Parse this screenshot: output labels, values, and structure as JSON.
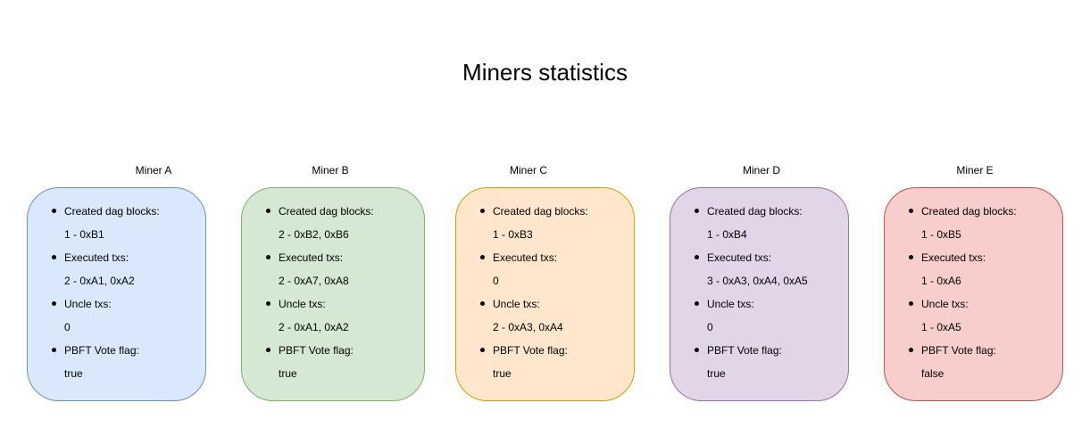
{
  "title": "Miners statistics",
  "miners": [
    {
      "name": "Miner A",
      "fill": "#dae8fc",
      "stroke": "#6c8ebf",
      "stats": [
        {
          "label": "Created dag blocks:",
          "value": "1 - 0xB1"
        },
        {
          "label": "Executed txs:",
          "value": "2 - 0xA1, 0xA2"
        },
        {
          "label": "Uncle txs:",
          "value": "0"
        },
        {
          "label": "PBFT Vote flag:",
          "value": "true"
        }
      ]
    },
    {
      "name": "Miner B",
      "fill": "#d5e8d4",
      "stroke": "#82b366",
      "stats": [
        {
          "label": "Created dag blocks:",
          "value": "2 - 0xB2, 0xB6"
        },
        {
          "label": "Executed txs:",
          "value": "2 - 0xA7, 0xA8"
        },
        {
          "label": "Uncle txs:",
          "value": "2 - 0xA1, 0xA2"
        },
        {
          "label": "PBFT Vote flag:",
          "value": "true"
        }
      ]
    },
    {
      "name": "Miner C",
      "fill": "#ffe6cc",
      "stroke": "#d79b00",
      "stats": [
        {
          "label": "Created dag blocks:",
          "value": "1 - 0xB3"
        },
        {
          "label": "Executed txs:",
          "value": "0"
        },
        {
          "label": "Uncle txs:",
          "value": "2 - 0xA3, 0xA4"
        },
        {
          "label": "PBFT Vote flag:",
          "value": "true"
        }
      ]
    },
    {
      "name": "Miner D",
      "fill": "#e1d5e7",
      "stroke": "#9673a6",
      "stats": [
        {
          "label": "Created dag blocks:",
          "value": "1 - 0xB4"
        },
        {
          "label": "Executed txs:",
          "value": "3 - 0xA3, 0xA4, 0xA5"
        },
        {
          "label": "Uncle txs:",
          "value": "0"
        },
        {
          "label": "PBFT Vote flag:",
          "value": "true"
        }
      ]
    },
    {
      "name": "Miner E",
      "fill": "#f8cecc",
      "stroke": "#b85450",
      "stats": [
        {
          "label": "Created dag blocks:",
          "value": "1 - 0xB5"
        },
        {
          "label": "Executed txs:",
          "value": "1 - 0xA6"
        },
        {
          "label": "Uncle txs:",
          "value": "1 - 0xA5"
        },
        {
          "label": "PBFT Vote flag:",
          "value": "false"
        }
      ]
    }
  ]
}
